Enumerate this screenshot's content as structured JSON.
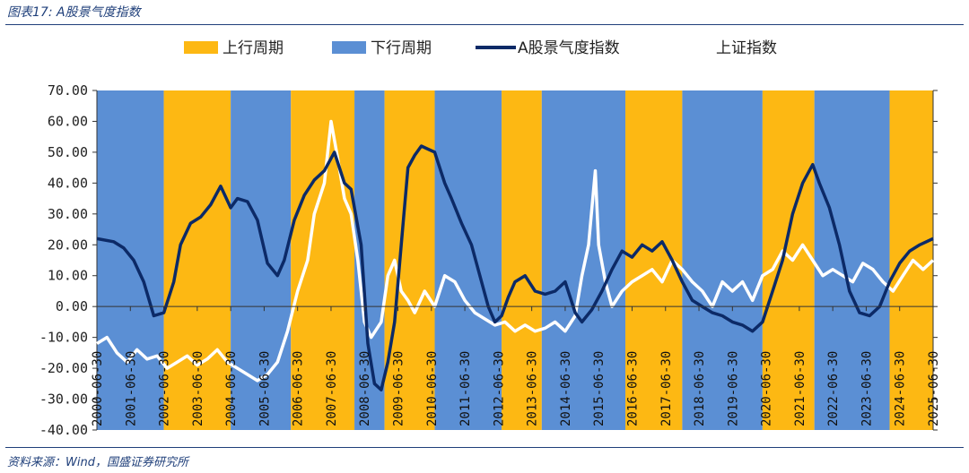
{
  "header": {
    "title": "图表17: A股景气度指数"
  },
  "footer": {
    "source": "资料来源：Wind，国盛证券研究所"
  },
  "colors": {
    "up": "#FDB813",
    "down": "#5B8FD4",
    "index": "#0C2A67",
    "sse": "#FFFFFF",
    "title": "#1f3f7a"
  },
  "chart_data": {
    "type": "line",
    "legend": [
      "上行周期",
      "下行周期",
      "A股景气度指数",
      "上证指数"
    ],
    "legend_position": "top",
    "ylim": [
      -40,
      70
    ],
    "yticks": [
      "70.00",
      "60.00",
      "50.00",
      "40.00",
      "30.00",
      "20.00",
      "10.00",
      "0.00",
      "-10.00",
      "-20.00",
      "-30.00",
      "-40.00"
    ],
    "xlim": [
      2000.5,
      2025.5
    ],
    "xticks": [
      "2000-06-30",
      "2001-06-30",
      "2002-06-30",
      "2003-06-30",
      "2004-06-30",
      "2005-06-30",
      "2006-06-30",
      "2007-06-30",
      "2008-06-30",
      "2009-06-30",
      "2010-06-30",
      "2011-06-30",
      "2012-06-30",
      "2013-06-30",
      "2014-06-30",
      "2015-06-30",
      "2016-06-30",
      "2017-06-30",
      "2018-06-30",
      "2019-06-30",
      "2020-06-30",
      "2021-06-30",
      "2022-06-30",
      "2023-06-30",
      "2024-06-30",
      "2025-06-30"
    ],
    "cycles": [
      {
        "phase": "down",
        "start": 2000.5,
        "end": 2002.5
      },
      {
        "phase": "up",
        "start": 2002.5,
        "end": 2004.5
      },
      {
        "phase": "down",
        "start": 2004.5,
        "end": 2006.3
      },
      {
        "phase": "up",
        "start": 2006.3,
        "end": 2008.2
      },
      {
        "phase": "down",
        "start": 2008.2,
        "end": 2009.1
      },
      {
        "phase": "up",
        "start": 2009.1,
        "end": 2010.6
      },
      {
        "phase": "down",
        "start": 2010.6,
        "end": 2012.6
      },
      {
        "phase": "up",
        "start": 2012.6,
        "end": 2013.8
      },
      {
        "phase": "down",
        "start": 2013.8,
        "end": 2016.3
      },
      {
        "phase": "up",
        "start": 2016.3,
        "end": 2018.0
      },
      {
        "phase": "down",
        "start": 2018.0,
        "end": 2020.4
      },
      {
        "phase": "up",
        "start": 2020.4,
        "end": 2021.95
      },
      {
        "phase": "down",
        "start": 2021.95,
        "end": 2024.2
      },
      {
        "phase": "up",
        "start": 2024.2,
        "end": 2025.5
      }
    ],
    "series": [
      {
        "name": "A股景气度指数",
        "x": [
          2000.5,
          2001.0,
          2001.3,
          2001.6,
          2001.9,
          2002.2,
          2002.5,
          2002.8,
          2003.0,
          2003.3,
          2003.6,
          2003.9,
          2004.2,
          2004.5,
          2004.7,
          2005.0,
          2005.3,
          2005.6,
          2005.9,
          2006.1,
          2006.4,
          2006.7,
          2007.0,
          2007.3,
          2007.6,
          2007.9,
          2008.1,
          2008.4,
          2008.6,
          2008.8,
          2009.0,
          2009.2,
          2009.4,
          2009.6,
          2009.8,
          2010.0,
          2010.2,
          2010.4,
          2010.6,
          2010.9,
          2011.1,
          2011.4,
          2011.7,
          2012.0,
          2012.2,
          2012.4,
          2012.6,
          2012.8,
          2013.0,
          2013.3,
          2013.6,
          2013.9,
          2014.2,
          2014.5,
          2014.8,
          2015.0,
          2015.3,
          2015.6,
          2015.9,
          2016.2,
          2016.5,
          2016.8,
          2017.1,
          2017.4,
          2017.7,
          2018.0,
          2018.3,
          2018.6,
          2018.9,
          2019.2,
          2019.5,
          2019.8,
          2020.1,
          2020.4,
          2020.7,
          2021.0,
          2021.3,
          2021.6,
          2021.9,
          2022.1,
          2022.4,
          2022.7,
          2023.0,
          2023.3,
          2023.6,
          2023.9,
          2024.2,
          2024.5,
          2024.8,
          2025.1,
          2025.5
        ],
        "y": [
          22,
          21,
          19,
          15,
          8,
          -3,
          -2,
          8,
          20,
          27,
          29,
          33,
          39,
          32,
          35,
          34,
          28,
          14,
          10,
          15,
          28,
          36,
          41,
          44,
          50,
          40,
          38,
          20,
          -12,
          -25,
          -27,
          -18,
          -5,
          20,
          45,
          49,
          52,
          51,
          50,
          40,
          35,
          27,
          20,
          8,
          0,
          -5,
          -3,
          3,
          8,
          10,
          5,
          4,
          5,
          8,
          -2,
          -5,
          -1,
          5,
          12,
          18,
          16,
          20,
          18,
          21,
          15,
          8,
          2,
          0,
          -2,
          -3,
          -5,
          -6,
          -8,
          -5,
          5,
          15,
          30,
          40,
          46,
          40,
          32,
          20,
          5,
          -2,
          -3,
          0,
          8,
          14,
          18,
          20,
          22
        ]
      },
      {
        "name": "上证指数",
        "x": [
          2000.5,
          2000.8,
          2001.1,
          2001.4,
          2001.7,
          2002.0,
          2002.3,
          2002.6,
          2002.9,
          2003.2,
          2003.5,
          2003.8,
          2004.1,
          2004.4,
          2004.7,
          2005.0,
          2005.3,
          2005.6,
          2005.9,
          2006.2,
          2006.5,
          2006.8,
          2007.0,
          2007.3,
          2007.5,
          2007.7,
          2007.9,
          2008.1,
          2008.3,
          2008.5,
          2008.7,
          2009.0,
          2009.2,
          2009.4,
          2009.6,
          2009.8,
          2010.0,
          2010.3,
          2010.6,
          2010.9,
          2011.2,
          2011.5,
          2011.8,
          2012.1,
          2012.4,
          2012.7,
          2013.0,
          2013.3,
          2013.6,
          2013.9,
          2014.2,
          2014.5,
          2014.8,
          2015.0,
          2015.2,
          2015.4,
          2015.5,
          2015.7,
          2015.9,
          2016.2,
          2016.5,
          2016.8,
          2017.1,
          2017.4,
          2017.7,
          2018.0,
          2018.3,
          2018.6,
          2018.9,
          2019.2,
          2019.5,
          2019.8,
          2020.1,
          2020.4,
          2020.7,
          2021.0,
          2021.3,
          2021.6,
          2021.9,
          2022.2,
          2022.5,
          2022.8,
          2023.1,
          2023.4,
          2023.7,
          2024.0,
          2024.3,
          2024.6,
          2024.9,
          2025.2,
          2025.5
        ],
        "y": [
          -12,
          -10,
          -15,
          -18,
          -14,
          -17,
          -16,
          -20,
          -18,
          -16,
          -19,
          -17,
          -14,
          -18,
          -20,
          -22,
          -24,
          -22,
          -18,
          -8,
          5,
          15,
          30,
          40,
          60,
          48,
          35,
          30,
          15,
          -5,
          -10,
          -5,
          10,
          15,
          5,
          2,
          -2,
          5,
          0,
          10,
          8,
          2,
          -2,
          -4,
          -6,
          -5,
          -8,
          -6,
          -8,
          -7,
          -5,
          -8,
          -3,
          10,
          20,
          44,
          20,
          8,
          0,
          5,
          8,
          10,
          12,
          8,
          15,
          12,
          8,
          5,
          0,
          8,
          5,
          8,
          2,
          10,
          12,
          18,
          15,
          20,
          15,
          10,
          12,
          10,
          8,
          14,
          12,
          8,
          5,
          10,
          15,
          12,
          15
        ]
      }
    ]
  }
}
